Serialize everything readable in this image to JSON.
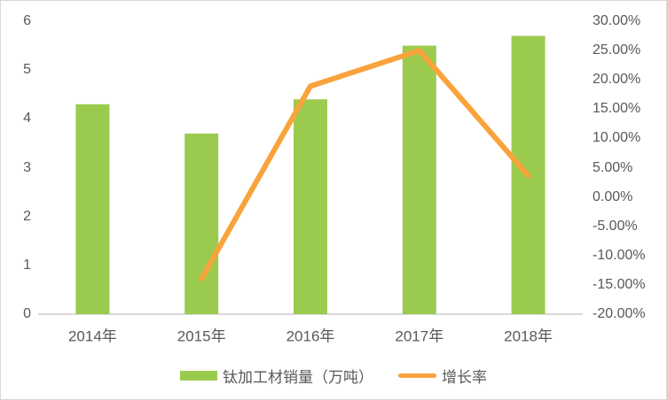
{
  "figure": {
    "background": "#ffffff",
    "border_color": "#d9d9d9",
    "text_color": "#595959",
    "baseline_color": "#d9d9d9"
  },
  "chart_data": {
    "type": "bar",
    "subtype": "combo-bar-line",
    "title": "",
    "categories": [
      "2014年",
      "2015年",
      "2016年",
      "2017年",
      "2018年"
    ],
    "series": [
      {
        "name": "钛加工材销量（万吨）",
        "type": "bar",
        "axis": "left",
        "color": "#9BCB4E",
        "values": [
          4.3,
          3.7,
          4.4,
          5.5,
          5.7
        ]
      },
      {
        "name": "增长率",
        "type": "line",
        "axis": "right",
        "color": "#F9A33C",
        "value_unit": "%",
        "values": [
          null,
          -13.95,
          18.92,
          25.0,
          3.64
        ]
      }
    ],
    "left_axis": {
      "min": 0,
      "max": 6,
      "step": 1,
      "tick_labels_top_to_bottom": [
        "6",
        "5",
        "4",
        "3",
        "2",
        "1",
        "0"
      ]
    },
    "right_axis": {
      "min": -20,
      "max": 30,
      "step": 5,
      "tick_labels_top_to_bottom": [
        "30.00%",
        "25.00%",
        "20.00%",
        "15.00%",
        "10.00%",
        "5.00%",
        "0.00%",
        "-5.00%",
        "-10.00%",
        "-15.00%",
        "-20.00%"
      ]
    },
    "legend_position": "bottom",
    "grid": false
  }
}
